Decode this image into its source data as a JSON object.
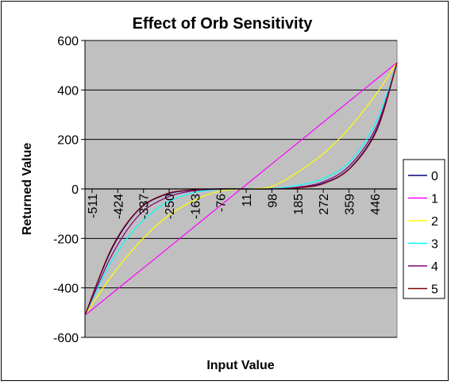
{
  "chart_data": {
    "type": "line",
    "title": "Effect of Orb Sensitivity",
    "xlabel": "Input Value",
    "ylabel": "Returned Value",
    "ylim": [
      -600,
      600
    ],
    "yticks": [
      600,
      400,
      200,
      0,
      -200,
      -400,
      -600
    ],
    "xlim": [
      -511,
      511
    ],
    "xtick_labels": [
      "-511",
      "-424",
      "-337",
      "-250",
      "-163",
      "-76",
      "11",
      "98",
      "185",
      "272",
      "359",
      "446"
    ],
    "grid": "horizontal major",
    "legend_position": "right",
    "plot_background": "#c0c0c0",
    "series": [
      {
        "name": "0",
        "color": "#000080",
        "x": [
          -511,
          -424,
          -337,
          -250,
          -163,
          -76,
          11,
          98,
          185,
          272,
          359,
          446,
          511
        ],
        "values": [
          -511,
          -245,
          -87,
          -24,
          -5,
          0,
          0,
          0,
          5,
          24,
          87,
          245,
          511
        ]
      },
      {
        "name": "1",
        "color": "#ff00ff",
        "x": [
          -511,
          -424,
          -337,
          -250,
          -163,
          -76,
          11,
          98,
          185,
          272,
          359,
          446,
          511
        ],
        "values": [
          -511,
          -424,
          -337,
          -250,
          -163,
          -76,
          11,
          98,
          185,
          272,
          359,
          446,
          511
        ]
      },
      {
        "name": "2",
        "color": "#ffff00",
        "x": [
          -511,
          -424,
          -337,
          -250,
          -163,
          -76,
          11,
          98,
          185,
          272,
          359,
          446,
          511
        ],
        "values": [
          -511,
          -352,
          -222,
          -120,
          -52,
          -11,
          0,
          9,
          67,
          145,
          252,
          389,
          511
        ]
      },
      {
        "name": "3",
        "color": "#00ffff",
        "x": [
          -511,
          -424,
          -337,
          -250,
          -163,
          -76,
          11,
          98,
          185,
          272,
          359,
          446,
          511
        ],
        "values": [
          -511,
          -292,
          -147,
          -60,
          -17,
          -2,
          0,
          1,
          14,
          43,
          113,
          279,
          511
        ]
      },
      {
        "name": "4",
        "color": "#800080",
        "x": [
          -511,
          -424,
          -337,
          -250,
          -163,
          -76,
          11,
          98,
          185,
          272,
          359,
          446,
          511
        ],
        "values": [
          -511,
          -270,
          -110,
          -38,
          -9,
          -1,
          0,
          0,
          7,
          30,
          98,
          258,
          511
        ]
      },
      {
        "name": "5",
        "color": "#800000",
        "x": [
          -511,
          -424,
          -337,
          -250,
          -163,
          -76,
          11,
          98,
          185,
          272,
          359,
          446,
          511
        ],
        "values": [
          -511,
          -240,
          -85,
          -22,
          -4,
          0,
          0,
          0,
          4,
          22,
          85,
          240,
          511
        ]
      }
    ]
  }
}
